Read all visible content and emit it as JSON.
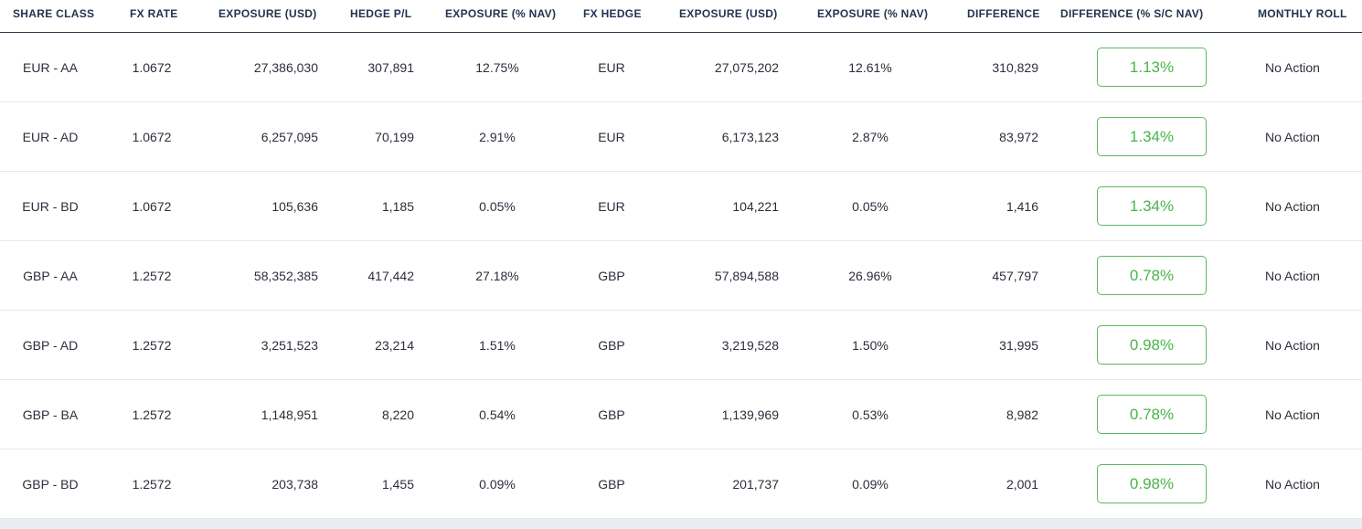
{
  "columns": [
    {
      "label": "SHARE CLASS"
    },
    {
      "label": "FX RATE"
    },
    {
      "label": "EXPOSURE (USD)"
    },
    {
      "label": "HEDGE P/L"
    },
    {
      "label": "EXPOSURE (% NAV)"
    },
    {
      "label": "FX HEDGE"
    },
    {
      "label": "EXPOSURE (USD)"
    },
    {
      "label": "EXPOSURE (% NAV)"
    },
    {
      "label": "DIFFERENCE"
    },
    {
      "label": "DIFFERENCE (% S/C NAV)"
    },
    {
      "label": "MONTHLY ROLL"
    }
  ],
  "rows": [
    {
      "share_class": "EUR - AA",
      "fx_rate": "1.0672",
      "exposure_usd": "27,386,030",
      "hedge_pl": "307,891",
      "exposure_nav": "12.75%",
      "fx_hedge": "EUR",
      "hedge_exposure_usd": "27,075,202",
      "hedge_exposure_nav": "12.61%",
      "difference": "310,829",
      "difference_pct": "1.13%",
      "monthly_roll": "No Action"
    },
    {
      "share_class": "EUR - AD",
      "fx_rate": "1.0672",
      "exposure_usd": "6,257,095",
      "hedge_pl": "70,199",
      "exposure_nav": "2.91%",
      "fx_hedge": "EUR",
      "hedge_exposure_usd": "6,173,123",
      "hedge_exposure_nav": "2.87%",
      "difference": "83,972",
      "difference_pct": "1.34%",
      "monthly_roll": "No Action"
    },
    {
      "share_class": "EUR - BD",
      "fx_rate": "1.0672",
      "exposure_usd": "105,636",
      "hedge_pl": "1,185",
      "exposure_nav": "0.05%",
      "fx_hedge": "EUR",
      "hedge_exposure_usd": "104,221",
      "hedge_exposure_nav": "0.05%",
      "difference": "1,416",
      "difference_pct": "1.34%",
      "monthly_roll": "No Action"
    },
    {
      "share_class": "GBP - AA",
      "fx_rate": "1.2572",
      "exposure_usd": "58,352,385",
      "hedge_pl": "417,442",
      "exposure_nav": "27.18%",
      "fx_hedge": "GBP",
      "hedge_exposure_usd": "57,894,588",
      "hedge_exposure_nav": "26.96%",
      "difference": "457,797",
      "difference_pct": "0.78%",
      "monthly_roll": "No Action"
    },
    {
      "share_class": "GBP - AD",
      "fx_rate": "1.2572",
      "exposure_usd": "3,251,523",
      "hedge_pl": "23,214",
      "exposure_nav": "1.51%",
      "fx_hedge": "GBP",
      "hedge_exposure_usd": "3,219,528",
      "hedge_exposure_nav": "1.50%",
      "difference": "31,995",
      "difference_pct": "0.98%",
      "monthly_roll": "No Action"
    },
    {
      "share_class": "GBP - BA",
      "fx_rate": "1.2572",
      "exposure_usd": "1,148,951",
      "hedge_pl": "8,220",
      "exposure_nav": "0.54%",
      "fx_hedge": "GBP",
      "hedge_exposure_usd": "1,139,969",
      "hedge_exposure_nav": "0.53%",
      "difference": "8,982",
      "difference_pct": "0.78%",
      "monthly_roll": "No Action"
    },
    {
      "share_class": "GBP - BD",
      "fx_rate": "1.2572",
      "exposure_usd": "203,738",
      "hedge_pl": "1,455",
      "exposure_nav": "0.09%",
      "fx_hedge": "GBP",
      "hedge_exposure_usd": "201,737",
      "hedge_exposure_nav": "0.09%",
      "difference": "2,001",
      "difference_pct": "0.98%",
      "monthly_roll": "No Action"
    }
  ],
  "colors": {
    "header_text": "#22344f",
    "header_rule": "#2c3a4f",
    "badge_green": "#48b54a",
    "row_divider": "#e4e7ec"
  }
}
